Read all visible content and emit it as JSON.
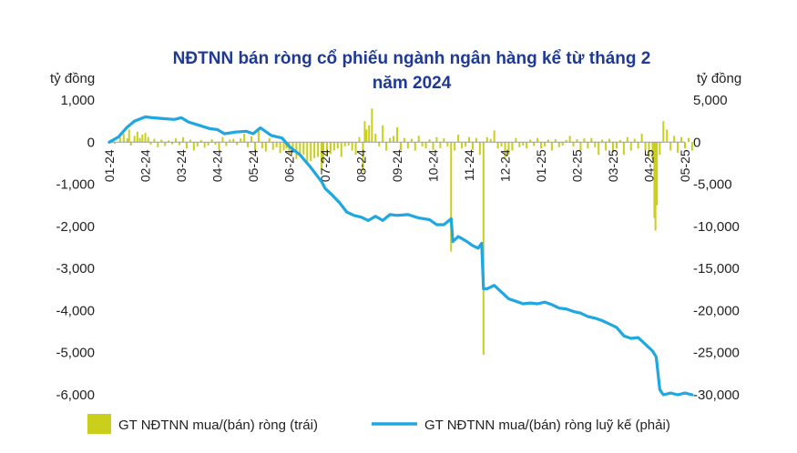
{
  "chart_data": {
    "type": "bar+line",
    "title_lines": [
      "NĐTNN bán ròng cổ phiếu ngành ngân hàng kể từ tháng 2",
      "năm 2024"
    ],
    "y_left_unit": "tỷ đồng",
    "y_right_unit": "tỷ đồng",
    "y_left_range": [
      -6000,
      1000
    ],
    "y_right_range": [
      -30000,
      5000
    ],
    "y_left_ticks": [
      "1,000",
      "0",
      "-1,000",
      "-2,000",
      "-3,000",
      "-4,000",
      "-5,000",
      "-6,000"
    ],
    "y_right_ticks": [
      "5,000",
      "0",
      "-5,000",
      "-10,000",
      "-15,000",
      "-20,000",
      "-25,000",
      "-30,000"
    ],
    "x_ticks": [
      "01-24",
      "02-24",
      "03-24",
      "04-24",
      "05-24",
      "06-24",
      "07-24",
      "08-24",
      "09-24",
      "10-24",
      "11-24",
      "12-24",
      "01-25",
      "02-25",
      "03-25",
      "04-25",
      "05-25"
    ],
    "legend": [
      {
        "label": "GT NĐTNN mua/(bán) ròng (trái)",
        "color": "#c9cf1a",
        "kind": "bar"
      },
      {
        "label": "GT NĐTNN mua/(bán) ròng luỹ kế (phải)",
        "color": "#1ea7e0",
        "kind": "line"
      }
    ],
    "cumulative_series": {
      "name": "GT NĐTNN mua/(bán) ròng luỹ kế (phải)",
      "points": [
        [
          0.0,
          0
        ],
        [
          0.25,
          600
        ],
        [
          0.5,
          1800
        ],
        [
          0.7,
          2500
        ],
        [
          1.0,
          3000
        ],
        [
          1.2,
          2900
        ],
        [
          1.5,
          2800
        ],
        [
          1.8,
          2700
        ],
        [
          2.0,
          2900
        ],
        [
          2.2,
          2400
        ],
        [
          2.5,
          2000
        ],
        [
          2.8,
          1600
        ],
        [
          3.0,
          1500
        ],
        [
          3.2,
          1000
        ],
        [
          3.5,
          1200
        ],
        [
          3.8,
          1300
        ],
        [
          4.0,
          1000
        ],
        [
          4.2,
          1700
        ],
        [
          4.5,
          800
        ],
        [
          4.8,
          500
        ],
        [
          5.0,
          -500
        ],
        [
          5.3,
          -1500
        ],
        [
          5.6,
          -3000
        ],
        [
          5.9,
          -4700
        ],
        [
          6.0,
          -5500
        ],
        [
          6.2,
          -6300
        ],
        [
          6.4,
          -7200
        ],
        [
          6.6,
          -8300
        ],
        [
          6.8,
          -8700
        ],
        [
          7.0,
          -8900
        ],
        [
          7.2,
          -9300
        ],
        [
          7.4,
          -8800
        ],
        [
          7.6,
          -9300
        ],
        [
          7.8,
          -8600
        ],
        [
          8.0,
          -8700
        ],
        [
          8.3,
          -8600
        ],
        [
          8.6,
          -9000
        ],
        [
          8.9,
          -9200
        ],
        [
          9.1,
          -9800
        ],
        [
          9.3,
          -9800
        ],
        [
          9.5,
          -9100
        ],
        [
          9.55,
          -11800
        ],
        [
          9.7,
          -11200
        ],
        [
          9.9,
          -11700
        ],
        [
          10.1,
          -12300
        ],
        [
          10.25,
          -12600
        ],
        [
          10.35,
          -12000
        ],
        [
          10.4,
          -17400
        ],
        [
          10.5,
          -17400
        ],
        [
          10.7,
          -17000
        ],
        [
          10.9,
          -17800
        ],
        [
          11.1,
          -18600
        ],
        [
          11.3,
          -18900
        ],
        [
          11.5,
          -19200
        ],
        [
          11.7,
          -19100
        ],
        [
          11.9,
          -19200
        ],
        [
          12.1,
          -19000
        ],
        [
          12.3,
          -19300
        ],
        [
          12.5,
          -19700
        ],
        [
          12.7,
          -19800
        ],
        [
          12.9,
          -20100
        ],
        [
          13.1,
          -20300
        ],
        [
          13.3,
          -20700
        ],
        [
          13.5,
          -20900
        ],
        [
          13.7,
          -21200
        ],
        [
          13.9,
          -21600
        ],
        [
          14.1,
          -22000
        ],
        [
          14.3,
          -23000
        ],
        [
          14.5,
          -23300
        ],
        [
          14.7,
          -23200
        ],
        [
          14.9,
          -24000
        ],
        [
          15.1,
          -24800
        ],
        [
          15.2,
          -25500
        ],
        [
          15.3,
          -29400
        ],
        [
          15.4,
          -30000
        ],
        [
          15.6,
          -29800
        ],
        [
          15.8,
          -30000
        ],
        [
          16.0,
          -29800
        ],
        [
          16.2,
          -30000
        ]
      ]
    },
    "daily_series": {
      "name": "GT NĐTNN mua/(bán) ròng (trái)",
      "points": [
        [
          0.05,
          60
        ],
        [
          0.15,
          -40
        ],
        [
          0.3,
          120
        ],
        [
          0.4,
          200
        ],
        [
          0.5,
          90
        ],
        [
          0.55,
          300
        ],
        [
          0.6,
          -80
        ],
        [
          0.7,
          150
        ],
        [
          0.78,
          250
        ],
        [
          0.85,
          100
        ],
        [
          0.92,
          180
        ],
        [
          1.0,
          220
        ],
        [
          1.08,
          120
        ],
        [
          1.15,
          -60
        ],
        [
          1.25,
          80
        ],
        [
          1.35,
          -120
        ],
        [
          1.45,
          60
        ],
        [
          1.55,
          -90
        ],
        [
          1.65,
          40
        ],
        [
          1.75,
          -50
        ],
        [
          1.85,
          90
        ],
        [
          1.95,
          -70
        ],
        [
          2.05,
          120
        ],
        [
          2.15,
          -150
        ],
        [
          2.25,
          60
        ],
        [
          2.35,
          -200
        ],
        [
          2.45,
          -100
        ],
        [
          2.55,
          50
        ],
        [
          2.65,
          -130
        ],
        [
          2.75,
          -80
        ],
        [
          2.85,
          70
        ],
        [
          2.95,
          -60
        ],
        [
          3.05,
          -180
        ],
        [
          3.15,
          120
        ],
        [
          3.25,
          -90
        ],
        [
          3.35,
          60
        ],
        [
          3.45,
          80
        ],
        [
          3.55,
          -70
        ],
        [
          3.65,
          90
        ],
        [
          3.75,
          200
        ],
        [
          3.85,
          -120
        ],
        [
          3.95,
          140
        ],
        [
          4.05,
          -250
        ],
        [
          4.15,
          330
        ],
        [
          4.25,
          -150
        ],
        [
          4.35,
          -220
        ],
        [
          4.45,
          100
        ],
        [
          4.55,
          -180
        ],
        [
          4.65,
          -120
        ],
        [
          4.75,
          -260
        ],
        [
          4.85,
          -200
        ],
        [
          4.92,
          -150
        ],
        [
          5.0,
          -300
        ],
        [
          5.1,
          -250
        ],
        [
          5.2,
          -400
        ],
        [
          5.3,
          -350
        ],
        [
          5.4,
          -300
        ],
        [
          5.5,
          -500
        ],
        [
          5.6,
          -450
        ],
        [
          5.7,
          -380
        ],
        [
          5.8,
          -350
        ],
        [
          5.9,
          -650
        ],
        [
          5.95,
          -500
        ],
        [
          6.05,
          -320
        ],
        [
          6.15,
          -280
        ],
        [
          6.25,
          -200
        ],
        [
          6.35,
          -150
        ],
        [
          6.45,
          -350
        ],
        [
          6.55,
          -100
        ],
        [
          6.65,
          -80
        ],
        [
          6.75,
          -200
        ],
        [
          6.85,
          -300
        ],
        [
          6.95,
          120
        ],
        [
          7.05,
          -700
        ],
        [
          7.1,
          500
        ],
        [
          7.15,
          300
        ],
        [
          7.22,
          400
        ],
        [
          7.3,
          800
        ],
        [
          7.4,
          200
        ],
        [
          7.5,
          -100
        ],
        [
          7.6,
          400
        ],
        [
          7.7,
          -200
        ],
        [
          7.8,
          100
        ],
        [
          7.9,
          150
        ],
        [
          8.0,
          350
        ],
        [
          8.1,
          -200
        ],
        [
          8.2,
          100
        ],
        [
          8.3,
          -150
        ],
        [
          8.4,
          80
        ],
        [
          8.5,
          -200
        ],
        [
          8.6,
          150
        ],
        [
          8.7,
          -100
        ],
        [
          8.8,
          -150
        ],
        [
          8.9,
          70
        ],
        [
          9.0,
          -180
        ],
        [
          9.1,
          120
        ],
        [
          9.2,
          -140
        ],
        [
          9.3,
          90
        ],
        [
          9.4,
          -100
        ],
        [
          9.5,
          -2600
        ],
        [
          9.6,
          -200
        ],
        [
          9.7,
          180
        ],
        [
          9.8,
          -150
        ],
        [
          9.9,
          -100
        ],
        [
          10.0,
          120
        ],
        [
          10.1,
          -180
        ],
        [
          10.2,
          100
        ],
        [
          10.3,
          -300
        ],
        [
          10.4,
          -5050
        ],
        [
          10.5,
          120
        ],
        [
          10.6,
          80
        ],
        [
          10.7,
          280
        ],
        [
          10.8,
          -150
        ],
        [
          10.9,
          -100
        ],
        [
          11.0,
          -380
        ],
        [
          11.1,
          -300
        ],
        [
          11.2,
          -200
        ],
        [
          11.3,
          100
        ],
        [
          11.4,
          -120
        ],
        [
          11.5,
          -80
        ],
        [
          11.6,
          -150
        ],
        [
          11.7,
          60
        ],
        [
          11.8,
          -90
        ],
        [
          11.9,
          100
        ],
        [
          12.0,
          -150
        ],
        [
          12.1,
          -100
        ],
        [
          12.2,
          60
        ],
        [
          12.3,
          -200
        ],
        [
          12.4,
          70
        ],
        [
          12.5,
          -120
        ],
        [
          12.6,
          -80
        ],
        [
          12.7,
          50
        ],
        [
          12.8,
          150
        ],
        [
          12.9,
          -100
        ],
        [
          13.0,
          70
        ],
        [
          13.1,
          -200
        ],
        [
          13.2,
          90
        ],
        [
          13.3,
          -150
        ],
        [
          13.4,
          100
        ],
        [
          13.5,
          -120
        ],
        [
          13.6,
          -300
        ],
        [
          13.7,
          60
        ],
        [
          13.8,
          -200
        ],
        [
          13.9,
          80
        ],
        [
          14.0,
          -250
        ],
        [
          14.1,
          -150
        ],
        [
          14.2,
          50
        ],
        [
          14.3,
          -300
        ],
        [
          14.4,
          120
        ],
        [
          14.5,
          -200
        ],
        [
          14.6,
          80
        ],
        [
          14.7,
          -150
        ],
        [
          14.8,
          200
        ],
        [
          14.9,
          -200
        ],
        [
          15.0,
          -350
        ],
        [
          15.1,
          -400
        ],
        [
          15.15,
          -1800
        ],
        [
          15.18,
          -2100
        ],
        [
          15.22,
          -1500
        ],
        [
          15.3,
          -300
        ],
        [
          15.4,
          500
        ],
        [
          15.5,
          300
        ],
        [
          15.6,
          -200
        ],
        [
          15.7,
          150
        ],
        [
          15.8,
          -250
        ],
        [
          15.9,
          120
        ],
        [
          16.0,
          -150
        ],
        [
          16.1,
          100
        ],
        [
          16.2,
          -200
        ]
      ]
    }
  }
}
